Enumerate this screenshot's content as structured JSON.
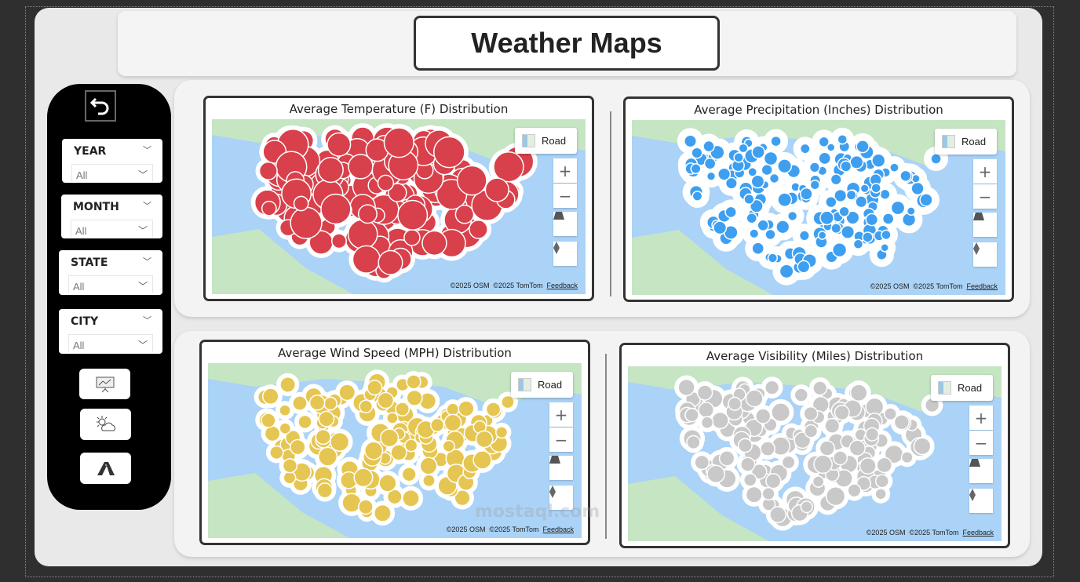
{
  "header": {
    "title": "Weather Maps"
  },
  "sidebar": {
    "back_icon": "back-arrow-icon",
    "slicers": [
      {
        "label": "YEAR",
        "value": "All"
      },
      {
        "label": "MONTH",
        "value": "All"
      },
      {
        "label": "STATE",
        "value": "All"
      },
      {
        "label": "CITY",
        "value": "All"
      }
    ],
    "nav_buttons": [
      {
        "icon": "presentation-chart-icon"
      },
      {
        "icon": "sun-cloud-icon"
      },
      {
        "icon": "road-icon"
      }
    ]
  },
  "maps": [
    {
      "title": "Average Temperature (F) Distribution",
      "color": "#d8404b",
      "size": "large"
    },
    {
      "title": "Average Precipitation (Inches) Distribution",
      "color": "#3e9ff0",
      "size": "small"
    },
    {
      "title": "Average Wind Speed (MPH) Distribution",
      "color": "#e6c652",
      "size": "medium"
    },
    {
      "title": "Average Visibility (Miles) Distribution",
      "color": "#c9c9c9",
      "size": "medium"
    }
  ],
  "map_controls": {
    "style_label": "Road",
    "zoom_in": "+",
    "zoom_out": "−",
    "attribution_osm": "©2025 OSM",
    "attribution_tomtom": "©2025 TomTom",
    "feedback": "Feedback"
  },
  "watermark": "mostaql.com"
}
